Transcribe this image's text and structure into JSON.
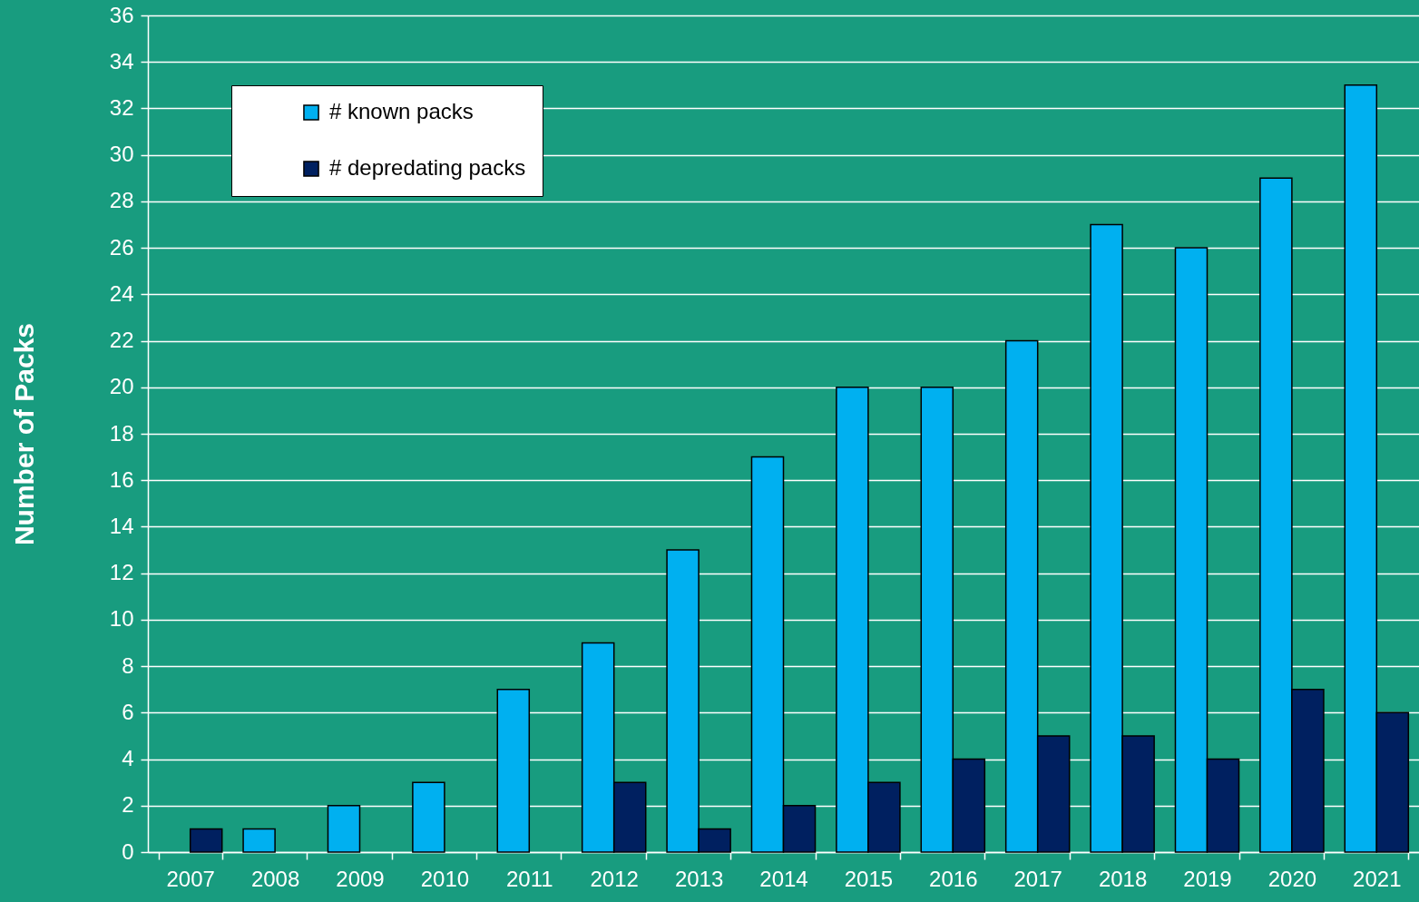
{
  "chart_data": {
    "type": "bar",
    "ylabel": "Number of Packs",
    "categories": [
      "2007",
      "2008",
      "2009",
      "2010",
      "2011",
      "2012",
      "2013",
      "2014",
      "2015",
      "2016",
      "2017",
      "2018",
      "2019",
      "2020",
      "2021"
    ],
    "series": [
      {
        "name": "# known packs",
        "color": "#00b0f0",
        "values": [
          0,
          1,
          2,
          3,
          7,
          9,
          13,
          17,
          20,
          20,
          22,
          27,
          26,
          29,
          33
        ]
      },
      {
        "name": "# depredating packs",
        "color": "#002060",
        "values": [
          1,
          0,
          0,
          0,
          0,
          3,
          1,
          2,
          3,
          4,
          5,
          5,
          4,
          7,
          6
        ]
      }
    ],
    "ylim": [
      0,
      36
    ],
    "yticks": [
      0,
      2,
      4,
      6,
      8,
      10,
      12,
      14,
      16,
      18,
      20,
      22,
      24,
      26,
      28,
      30,
      32,
      34,
      36
    ],
    "grid": "y",
    "legend": "top left"
  }
}
